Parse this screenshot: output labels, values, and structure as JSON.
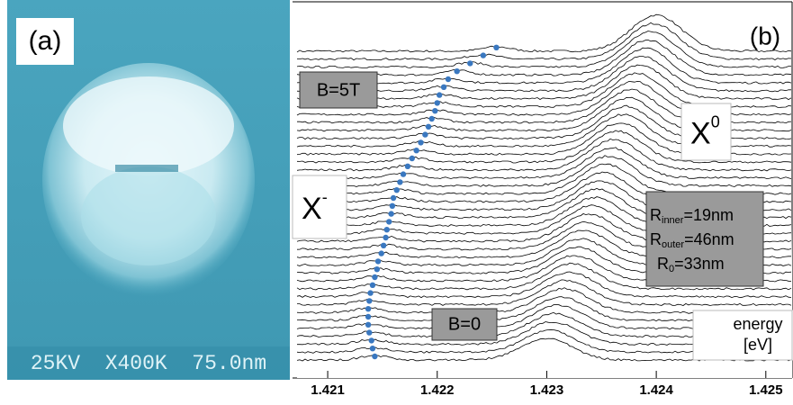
{
  "panel_a": {
    "label": "(a)",
    "scale_text": "25KV  X400K  75.0nm"
  },
  "panel_b": {
    "label": "(b)",
    "field_high": "B=5T",
    "field_zero": "B=0",
    "trion": {
      "symbol": "X",
      "superscript": "-"
    },
    "exciton": {
      "symbol": "X",
      "superscript": "0"
    },
    "radii": [
      {
        "symbol": "R",
        "subscript": "inner",
        "text": "=19nm"
      },
      {
        "symbol": "R",
        "subscript": "outer",
        "text": "=46nm"
      },
      {
        "symbol": "R",
        "subscript": "0",
        "text": "=33nm"
      }
    ],
    "x_label": "energy",
    "x_unit": "[eV]",
    "xlim": [
      1.42072,
      1.42524
    ],
    "xticks": [
      1.421,
      1.422,
      1.423,
      1.424,
      1.425
    ],
    "trion_peak_color": "#3a78c0",
    "trion_peak_energies": [
      1.42143,
      1.42141,
      1.4214,
      1.42138,
      1.42137,
      1.42137,
      1.42137,
      1.42138,
      1.42139,
      1.42141,
      1.42143,
      1.42145,
      1.42146,
      1.42149,
      1.42151,
      1.42153,
      1.42154,
      1.42156,
      1.42158,
      1.42159,
      1.4216,
      1.42163,
      1.42166,
      1.42169,
      1.42173,
      1.42177,
      1.42181,
      1.42185,
      1.42189,
      1.42192,
      1.42195,
      1.42198,
      1.422,
      1.42202,
      1.42206,
      1.4221,
      1.42218,
      1.4223,
      1.42242,
      1.42254
    ]
  }
}
